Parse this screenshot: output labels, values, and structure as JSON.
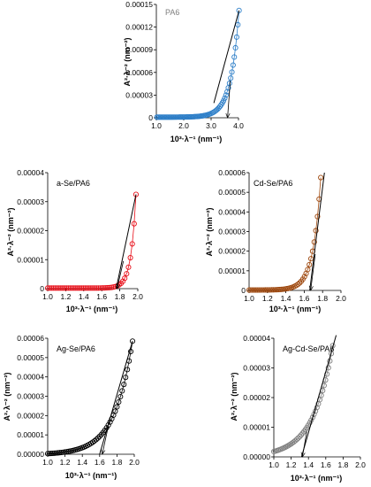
{
  "chart_data": [
    {
      "type": "scatter",
      "label": "PA6",
      "marker_color": "#2E7FC8",
      "label_color": "#7F7F7F",
      "xlabel": "10³·λ⁻¹ (nm⁻¹)",
      "ylabel": "A²·λ⁻² (nm⁻²)",
      "xlim": [
        1.0,
        4.0
      ],
      "xticks": [
        "1.0",
        "2.0",
        "3.0",
        "4.0"
      ],
      "ylim": [
        0,
        0.00015
      ],
      "yticks": [
        "0",
        "0.00003",
        "0.00006",
        "0.00009",
        "0.00012",
        "0.00015"
      ],
      "grid": false,
      "points": {
        "x_start": 1.02,
        "x_end": 4.02,
        "count": 70,
        "y0": 8e-07,
        "y_end": 0.000142,
        "k": 3.3
      },
      "fit": {
        "x": [
          3.1,
          4.02
        ],
        "y": [
          1.95e-05,
          0.000142
        ]
      },
      "extrapolation": {
        "x1": 3.7,
        "y1": 4.9e-05,
        "x2": 3.6,
        "y2": 0.0
      }
    },
    {
      "type": "scatter",
      "label": "a-Se/PA6",
      "marker_color": "#E8101A",
      "label_color": "#000000",
      "xlabel": "10³·λ⁻¹ (nm⁻¹)",
      "ylabel": "A²·λ⁻² (nm⁻²)",
      "xlim": [
        1.0,
        2.0
      ],
      "xticks": [
        "1.0",
        "1.2",
        "1.4",
        "1.6",
        "1.8",
        "2.0"
      ],
      "ylim": [
        0,
        4e-05
      ],
      "yticks": [
        "0",
        "0.00001",
        "0.00002",
        "0.00003",
        "0.00004"
      ],
      "grid": false,
      "points": {
        "x_start": 1.0,
        "x_end": 1.98,
        "count": 48,
        "y0": 2e-07,
        "y_end": 3.25e-05,
        "k": 18.0
      },
      "fit": {
        "x": [
          1.76,
          1.98
        ],
        "y": [
          0.0,
          3.25e-05
        ]
      },
      "extrapolation": {
        "x1": 1.84,
        "y1": 9.5e-06,
        "x2": 1.77,
        "y2": 0.0
      }
    },
    {
      "type": "scatter",
      "label": "Cd-Se/PA6",
      "marker_color": "#9E480E",
      "label_color": "#000000",
      "xlabel": "10³·λ⁻¹ (nm⁻¹)",
      "ylabel": "A²·λ⁻² (nm⁻²)",
      "xlim": [
        1.0,
        2.0
      ],
      "xticks": [
        "1.0",
        "1.2",
        "1.4",
        "1.6",
        "1.8",
        "2.0"
      ],
      "ylim": [
        0,
        6e-05
      ],
      "yticks": [
        "0",
        "0.00001",
        "0.00002",
        "0.00003",
        "0.00004",
        "0.00005",
        "0.00006"
      ],
      "grid": false,
      "points": {
        "x_start": 1.0,
        "x_end": 1.78,
        "count": 45,
        "y0": 2e-07,
        "y_end": 5.75e-05,
        "k": 12.0
      },
      "fit": {
        "x": [
          1.66,
          1.82
        ],
        "y": [
          0.0,
          6e-05
        ]
      },
      "extrapolation": {
        "x1": 1.72,
        "y1": 1.85e-05,
        "x2": 1.67,
        "y2": 0.0
      }
    },
    {
      "type": "scatter",
      "label": "Ag-Se/PA6",
      "marker_color": "#000000",
      "label_color": "#000000",
      "xlabel": "10³·λ⁻¹ (nm⁻¹)",
      "ylabel": "A²·λ⁻² (nm⁻²)",
      "xlim": [
        1.0,
        2.0
      ],
      "xticks": [
        "1.0",
        "1.2",
        "1.4",
        "1.6",
        "1.8",
        "2.0"
      ],
      "ylim": [
        0,
        6e-05
      ],
      "yticks": [
        "0.00000",
        "0.00001",
        "0.00002",
        "0.00003",
        "0.00004",
        "0.00005",
        "0.00006"
      ],
      "grid": false,
      "points": {
        "x_start": 1.0,
        "x_end": 1.98,
        "count": 50,
        "y0": 3e-07,
        "y_end": 5.85e-05,
        "k": 4.8
      },
      "fit": {
        "x": [
          1.6,
          1.98
        ],
        "y": [
          0.0,
          5.85e-05
        ]
      },
      "extrapolation": {
        "x1": 1.7,
        "y1": 1.45e-05,
        "x2": 1.63,
        "y2": 0.0
      }
    },
    {
      "type": "scatter",
      "label": "Ag-Cd-Se/PA6",
      "marker_color": "#7F7F7F",
      "label_color": "#000000",
      "xlabel": "10³·λ⁻¹ (nm⁻¹)",
      "ylabel": "A²·λ⁻² (nm⁻²)",
      "xlim": [
        1.0,
        2.0
      ],
      "xticks": [
        "1.0",
        "1.2",
        "1.4",
        "1.6",
        "1.8",
        "2.0"
      ],
      "ylim": [
        0,
        4e-05
      ],
      "yticks": [
        "0.00000",
        "0.00001",
        "0.00002",
        "0.00003",
        "0.00004"
      ],
      "grid": false,
      "points": {
        "x_start": 1.0,
        "x_end": 1.68,
        "count": 42,
        "y0": 1.8e-06,
        "y_end": 3.75e-05,
        "k": 4.45
      },
      "fit": {
        "x": [
          1.32,
          1.72
        ],
        "y": [
          0.0,
          4.1e-05
        ]
      },
      "extrapolation": {
        "x1": 1.38,
        "y1": 8.5e-06,
        "x2": 1.33,
        "y2": 0.0
      }
    }
  ]
}
